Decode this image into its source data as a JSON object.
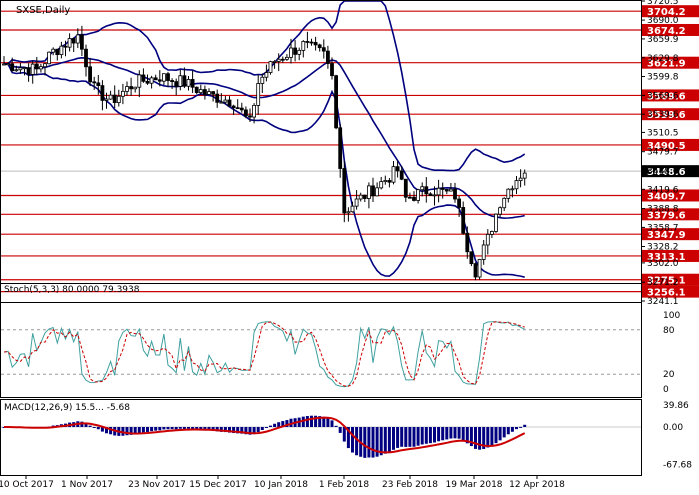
{
  "chart_data": [
    {
      "type": "candlestick",
      "title": "SXSE,Daily",
      "y_ticks": [
        3720.5,
        3690.0,
        3659.9,
        3629.8,
        3599.8,
        3569.6,
        3539.6,
        3510.5,
        3479.7,
        3448.6,
        3419.6,
        3388.8,
        3358.7,
        3328.2,
        3302.0,
        3271.2,
        3241.1
      ],
      "ylim": [
        3241.1,
        3720.5
      ],
      "level_lines": [
        {
          "value": 3704.2,
          "label": "3704.2"
        },
        {
          "value": 3674.2,
          "label": "3674.2"
        },
        {
          "value": 3621.9,
          "label": "3621.9"
        },
        {
          "value": 3569.6,
          "label": "3569.6"
        },
        {
          "value": 3539.6,
          "label": "3539.6"
        },
        {
          "value": 3490.5,
          "label": "3490.5"
        },
        {
          "value": 3409.7,
          "label": "3409.7"
        },
        {
          "value": 3379.6,
          "label": "3379.6"
        },
        {
          "value": 3347.9,
          "label": "3347.9"
        },
        {
          "value": 3313.1,
          "label": "3313.1"
        },
        {
          "value": 3275.1,
          "label": "3275.1"
        },
        {
          "value": 3256.1,
          "label": "3256.1"
        }
      ],
      "current_price": {
        "value": 3448.6,
        "label": "3448.6"
      },
      "indicators": [
        "Bollinger Bands (upper, middle, lower)"
      ],
      "colors": {
        "level": "#cc0000",
        "candle": "#000000",
        "bands": "#00007f",
        "current": "#000000"
      }
    },
    {
      "type": "line",
      "title": "Stoch(5,3,3) 80.0000 79.3938",
      "series": [
        {
          "name": "%K",
          "color": "#40a0a0"
        },
        {
          "name": "%D",
          "color": "#cc0000"
        }
      ],
      "y_ticks": [
        100,
        80,
        20,
        0
      ],
      "ylim": [
        0,
        100
      ],
      "levels": [
        80,
        20
      ]
    },
    {
      "type": "bar",
      "title": "MACD(12,26,9) 15.5... -5.68",
      "y_ticks": [
        39.86,
        0.0,
        -67.68
      ],
      "ylim": [
        -75,
        45
      ],
      "series": [
        {
          "name": "MACD",
          "color": "#000080"
        },
        {
          "name": "Signal",
          "color": "#cc0000"
        }
      ]
    }
  ],
  "x_axis": {
    "tick_labels": [
      "10 Oct 2017",
      "1 Nov 2017",
      "23 Nov 2017",
      "15 Dec 2017",
      "10 Jan 2018",
      "1 Feb 2018",
      "23 Feb 2018",
      "19 Mar 2018",
      "12 Apr 2018"
    ]
  }
}
